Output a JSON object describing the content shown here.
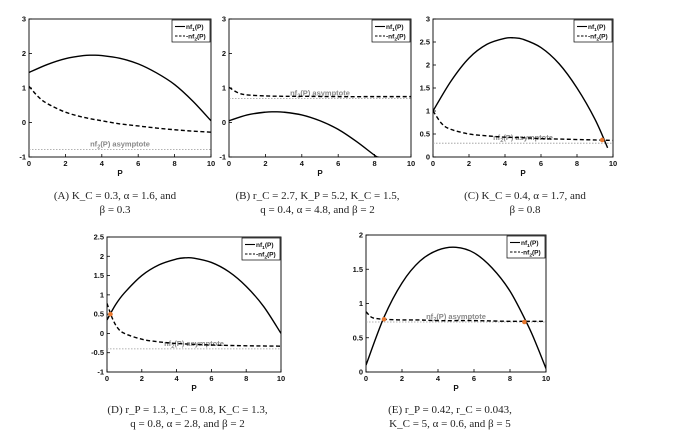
{
  "captions": [
    "(A) K_C = 0.3, α = 1.6, and\nβ = 0.3",
    "(B) r_C = 2.7, K_P = 5.2, K_C = 1.5,\nq = 0.4, α = 4.8, and β = 2",
    "(C) K_C = 0.4, α = 1.7, and\nβ = 0.8",
    "(D) r_P = 1.3, r_C = 0.8, K_C = 1.3,\nq = 0.8, α = 2.8, and β = 2",
    "(E) r_P = 0.42, r_C = 0.043,\nK_C = 5, α = 0.6, and β = 5"
  ],
  "colors": {
    "nf1": "#000000",
    "nf2": "#000000",
    "asymptote": "#999999",
    "intersection": "#e8772e",
    "asymptote_label": "#888888"
  },
  "chart_data": [
    {
      "type": "line",
      "panel": "A",
      "xlabel": "P",
      "ylabel": "",
      "xlim": [
        0,
        10
      ],
      "ylim": [
        -1,
        3
      ],
      "xticks": [
        0,
        2,
        4,
        6,
        8,
        10
      ],
      "yticks": [
        -1,
        0,
        1,
        2,
        3
      ],
      "legend": "top-right",
      "series": [
        {
          "name": "nf_1(P)",
          "style": "solid",
          "x": [
            0,
            1,
            2,
            3,
            3.5,
            4,
            5,
            6,
            7,
            8,
            9,
            10
          ],
          "y": [
            1.45,
            1.68,
            1.85,
            1.94,
            1.95,
            1.94,
            1.86,
            1.7,
            1.44,
            1.1,
            0.62,
            0.05
          ]
        },
        {
          "name": "-nf_2(P)",
          "style": "dashed",
          "x": [
            0,
            0.5,
            1,
            2,
            3,
            4,
            5,
            6,
            7,
            8,
            9,
            10
          ],
          "y": [
            1.05,
            0.75,
            0.55,
            0.3,
            0.15,
            0.05,
            -0.04,
            -0.1,
            -0.16,
            -0.21,
            -0.25,
            -0.28
          ]
        }
      ],
      "asymptote": {
        "y": -0.78,
        "label": "nf_2(P) asymptote"
      }
    },
    {
      "type": "line",
      "panel": "B",
      "xlabel": "P",
      "ylabel": "",
      "xlim": [
        0,
        10
      ],
      "ylim": [
        -1,
        3
      ],
      "xticks": [
        0,
        2,
        4,
        6,
        8,
        10
      ],
      "yticks": [
        -1,
        0,
        1,
        2,
        3
      ],
      "legend": "top-right",
      "series": [
        {
          "name": "nf_1(P)",
          "style": "solid",
          "x": [
            0,
            1,
            2,
            2.5,
            3,
            4,
            5,
            6,
            7,
            8,
            8.2
          ],
          "y": [
            0.05,
            0.22,
            0.3,
            0.31,
            0.3,
            0.22,
            0.05,
            -0.2,
            -0.55,
            -0.95,
            -1.0
          ]
        },
        {
          "name": "-nf_2(P)",
          "style": "dashed",
          "x": [
            0,
            0.5,
            1,
            2,
            3,
            4,
            6,
            8,
            10
          ],
          "y": [
            1.02,
            0.86,
            0.8,
            0.77,
            0.76,
            0.76,
            0.75,
            0.75,
            0.75
          ]
        }
      ],
      "asymptote": {
        "y": 0.7,
        "label": "nf_2(P) asymptote"
      }
    },
    {
      "type": "line",
      "panel": "C",
      "xlabel": "P",
      "ylabel": "",
      "xlim": [
        0,
        10
      ],
      "ylim": [
        0,
        3
      ],
      "xticks": [
        0,
        2,
        4,
        6,
        8,
        10
      ],
      "yticks": [
        0,
        0.5,
        1,
        1.5,
        2,
        2.5,
        3
      ],
      "legend": "top-right",
      "series": [
        {
          "name": "nf_1(P)",
          "style": "solid",
          "x": [
            0,
            1,
            2,
            3,
            4,
            4.5,
            5,
            6,
            7,
            8,
            9,
            9.7
          ],
          "y": [
            1.0,
            1.65,
            2.15,
            2.45,
            2.58,
            2.59,
            2.56,
            2.38,
            2.03,
            1.5,
            0.82,
            0.2
          ]
        },
        {
          "name": "-nf_2(P)",
          "style": "dashed",
          "x": [
            0,
            0.5,
            1,
            2,
            3,
            4,
            5,
            6,
            7,
            8,
            9,
            10
          ],
          "y": [
            1.0,
            0.72,
            0.6,
            0.5,
            0.46,
            0.43,
            0.42,
            0.4,
            0.39,
            0.38,
            0.37,
            0.36
          ]
        }
      ],
      "asymptote": {
        "y": 0.3,
        "label": "nf_2(P) asymptote"
      },
      "intersections": [
        {
          "x": 9.4,
          "y": 0.37
        }
      ]
    },
    {
      "type": "line",
      "panel": "D",
      "xlabel": "P",
      "ylabel": "",
      "xlim": [
        0,
        10
      ],
      "ylim": [
        -1,
        2.5
      ],
      "xticks": [
        0,
        2,
        4,
        6,
        8,
        10
      ],
      "yticks": [
        -1,
        -0.5,
        0,
        0.5,
        1,
        1.5,
        2,
        2.5
      ],
      "legend": "top-right",
      "series": [
        {
          "name": "nf_1(P)",
          "style": "solid",
          "x": [
            0,
            0.5,
            1,
            2,
            3,
            4,
            4.5,
            5,
            6,
            7,
            8,
            9,
            10
          ],
          "y": [
            0.35,
            0.75,
            1.05,
            1.5,
            1.78,
            1.93,
            1.96,
            1.95,
            1.84,
            1.6,
            1.22,
            0.7,
            0.0
          ]
        },
        {
          "name": "-nf_2(P)",
          "style": "dashed",
          "x": [
            0,
            0.3,
            0.6,
            1,
            2,
            3,
            4,
            6,
            8,
            10
          ],
          "y": [
            0.78,
            0.4,
            0.15,
            0.0,
            -0.15,
            -0.22,
            -0.26,
            -0.3,
            -0.32,
            -0.33
          ]
        }
      ],
      "asymptote": {
        "y": -0.4,
        "label": "nf_2(P) asymptote"
      },
      "intersections": [
        {
          "x": 0.2,
          "y": 0.5
        }
      ]
    },
    {
      "type": "line",
      "panel": "E",
      "xlabel": "P",
      "ylabel": "",
      "xlim": [
        0,
        10
      ],
      "ylim": [
        0,
        2
      ],
      "xticks": [
        0,
        2,
        4,
        6,
        8,
        10
      ],
      "yticks": [
        0,
        0.5,
        1,
        1.5,
        2
      ],
      "legend": "top-right",
      "series": [
        {
          "name": "nf_1(P)",
          "style": "solid",
          "x": [
            0,
            1,
            2,
            3,
            4,
            5,
            6,
            7,
            8,
            9,
            9.5,
            10
          ],
          "y": [
            0.1,
            0.8,
            1.3,
            1.62,
            1.78,
            1.82,
            1.74,
            1.52,
            1.18,
            0.68,
            0.38,
            0.05
          ]
        },
        {
          "name": "-nf_2(P)",
          "style": "dashed",
          "x": [
            0,
            0.3,
            0.6,
            1,
            2,
            3,
            4,
            6,
            8,
            10
          ],
          "y": [
            0.88,
            0.8,
            0.78,
            0.77,
            0.76,
            0.76,
            0.75,
            0.75,
            0.74,
            0.74
          ]
        }
      ],
      "asymptote": {
        "y": 0.73,
        "label": "nf_2(P) asymptote"
      },
      "intersections": [
        {
          "x": 1.0,
          "y": 0.77
        },
        {
          "x": 8.8,
          "y": 0.73
        }
      ]
    }
  ]
}
